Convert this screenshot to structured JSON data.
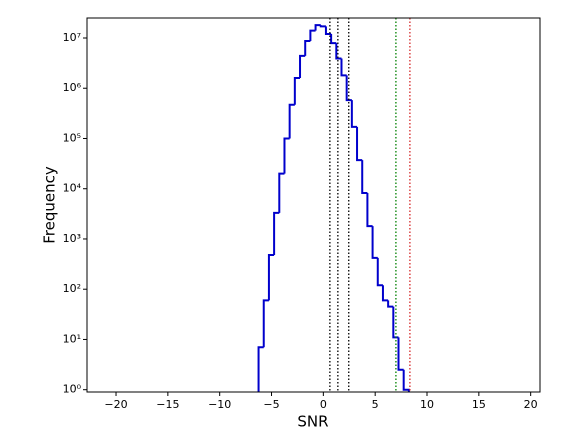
{
  "chart_data": {
    "type": "histogram",
    "x_label": "SNR",
    "y_label": "Frequency",
    "bins": [
      -6.25,
      -5.75,
      -5.25,
      -4.75,
      -4.25,
      -3.75,
      -3.25,
      -2.75,
      -2.25,
      -1.75,
      -1.25,
      -0.75,
      -0.25,
      0.25,
      0.75,
      1.25,
      1.75,
      2.25,
      2.75,
      3.25,
      3.75,
      4.25,
      4.75,
      5.25,
      5.75,
      6.25,
      6.75,
      7.25,
      7.75,
      8.25
    ],
    "counts": [
      7,
      60,
      480,
      3300,
      20000,
      100000,
      470000,
      1600000,
      4400000,
      8700000,
      14000000,
      18000000,
      17000000,
      12000000,
      7900000,
      3900000,
      1800000,
      580000,
      170000,
      37000,
      8200,
      1800,
      420,
      120,
      60,
      45,
      11,
      2.5,
      1
    ],
    "color": "#0000cc",
    "log_y": true,
    "xlim": [
      -22.8,
      20.9
    ],
    "ylim": [
      0.9,
      25000000
    ],
    "xticks": [
      {
        "value": -20,
        "label": "−20"
      },
      {
        "value": -15,
        "label": "−15"
      },
      {
        "value": -10,
        "label": "−10"
      },
      {
        "value": -5,
        "label": "−5"
      },
      0,
      5,
      10,
      15,
      20
    ],
    "yticks": [
      {
        "value": 1,
        "label": "10⁰"
      },
      {
        "value": 10,
        "label": "10¹"
      },
      {
        "value": 100,
        "label": "10²"
      },
      {
        "value": 1000,
        "label": "10³"
      },
      {
        "value": 10000,
        "label": "10⁴"
      },
      {
        "value": 100000,
        "label": "10⁵"
      },
      {
        "value": 1000000,
        "label": "10⁶"
      },
      {
        "value": 10000000,
        "label": "10⁷"
      }
    ],
    "vlines": [
      {
        "x": 0.63,
        "color": "#000000"
      },
      {
        "x": 1.4,
        "color": "#000000"
      },
      {
        "x": 2.45,
        "color": "#000000"
      },
      {
        "x": 7.0,
        "color": "#008000"
      },
      {
        "x": 8.35,
        "color": "#d62728"
      }
    ]
  }
}
